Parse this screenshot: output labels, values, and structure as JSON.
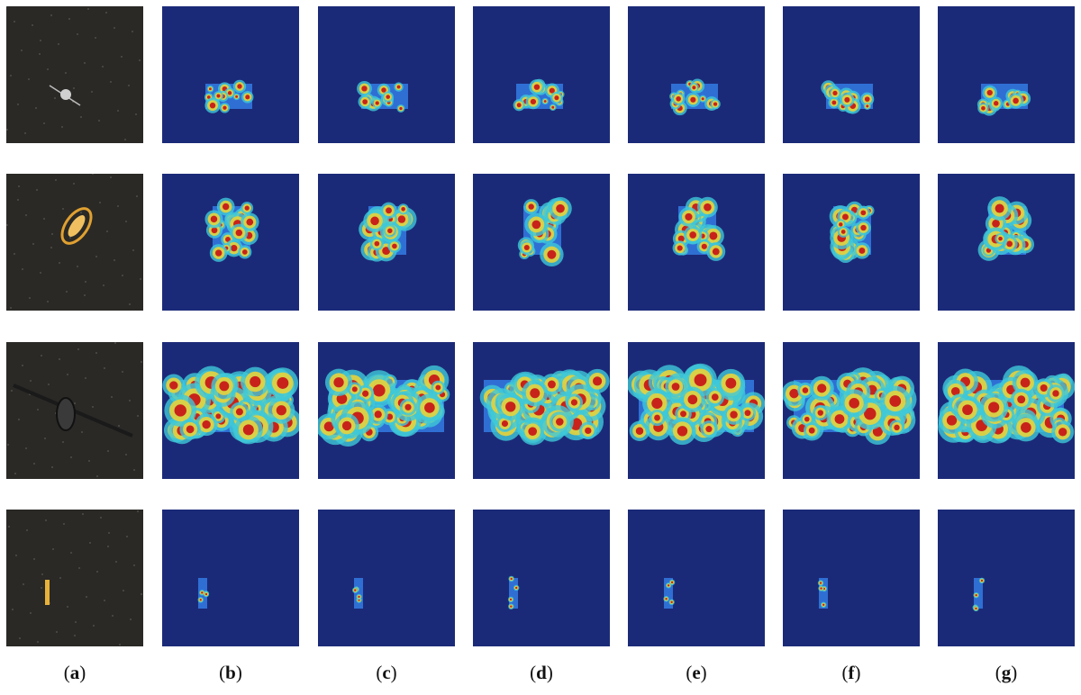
{
  "figure": {
    "columns": [
      {
        "id": "a",
        "caption_open": "(",
        "caption_letter": "a",
        "caption_close": ")",
        "kind": "photo"
      },
      {
        "id": "b",
        "caption_open": "(",
        "caption_letter": "b",
        "caption_close": ")",
        "kind": "heatmap"
      },
      {
        "id": "c",
        "caption_open": "(",
        "caption_letter": "c",
        "caption_close": ")",
        "kind": "heatmap"
      },
      {
        "id": "d",
        "caption_open": "(",
        "caption_letter": "d",
        "caption_close": ")",
        "kind": "heatmap"
      },
      {
        "id": "e",
        "caption_open": "(",
        "caption_letter": "e",
        "caption_close": ")",
        "kind": "heatmap"
      },
      {
        "id": "f",
        "caption_open": "(",
        "caption_letter": "f",
        "caption_close": ")",
        "kind": "heatmap"
      },
      {
        "id": "g",
        "caption_open": "(",
        "caption_letter": "g",
        "caption_close": ")",
        "kind": "heatmap"
      }
    ],
    "rows": [
      {
        "subject": "satellite-with-solar-panels-small"
      },
      {
        "subject": "gold-foil-satellite"
      },
      {
        "subject": "satellite-with-long-solar-arrays-large"
      },
      {
        "subject": "thin-elongated-satellite"
      }
    ],
    "colors": {
      "photo_background": "#2a2926",
      "heatmap_background": "#1b2a78",
      "heat_red": "#c8231a",
      "heat_yellow": "#e8d23a",
      "heat_cyan": "#3ec8d8",
      "heat_blue": "#2f6fd4"
    }
  }
}
